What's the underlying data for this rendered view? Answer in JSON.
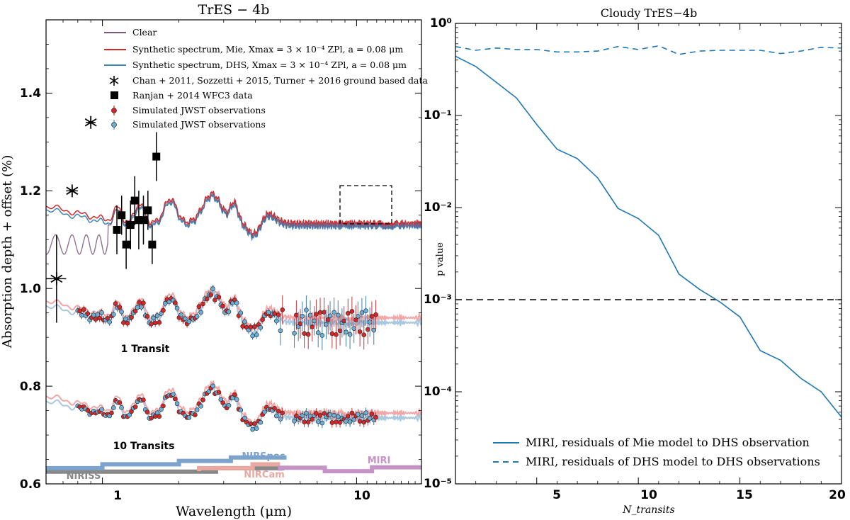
{
  "chart_data": [
    {
      "type": "line",
      "title": "TrES − 4b",
      "xlabel": "Wavelength (μm)",
      "ylabel": "Absorption depth + offset (%)",
      "xscale": "log",
      "xlim": [
        0.6,
        18
      ],
      "ylim": [
        0.6,
        1.55
      ],
      "yticks": [
        "0.6",
        "0.8",
        "1.0",
        "1.2",
        "1.4"
      ],
      "xticks": [
        "1",
        "10"
      ],
      "legend": [
        {
          "label": "Clear",
          "color": "#7d5a7d",
          "kind": "line"
        },
        {
          "label": "Synthetic spectrum, Mie, Xmax = 3 × 10⁻⁴ ZPl, a = 0.08 μm",
          "color": "#d62728",
          "kind": "line"
        },
        {
          "label": "Synthetic spectrum, DHS, Xmax = 3 × 10⁻⁴ ZPl, a = 0.08 μm",
          "color": "#3a86b8",
          "kind": "line"
        },
        {
          "label": "Chan + 2011, Sozzetti + 2015, Turner + 2016 ground based data",
          "color": "#000000",
          "kind": "star"
        },
        {
          "label": "Ranjan + 2014 WFC3 data",
          "color": "#000000",
          "kind": "square"
        },
        {
          "label": "Simulated JWST observations",
          "color": "#d62728",
          "kind": "dot"
        },
        {
          "label": "Simulated JWST observations",
          "color": "#6baed6",
          "kind": "dot"
        }
      ],
      "annotations": [
        "1 Transit",
        "10 Transits"
      ],
      "instruments": [
        {
          "name": "NIRISS",
          "color": "#888888",
          "range": [
            0.6,
            2.8
          ]
        },
        {
          "name": "NIRSpec",
          "color": "#7ba3cc",
          "range": [
            0.6,
            5.3
          ]
        },
        {
          "name": "NIRCam",
          "color": "#e9a9a0",
          "range": [
            2.4,
            5.0
          ]
        },
        {
          "name": "MIRI",
          "color": "#c593c6",
          "range": [
            5.0,
            18
          ]
        }
      ],
      "ground_data": [
        {
          "x": 0.66,
          "y": 1.02,
          "xerr": 0.06,
          "yerr": 0.09
        },
        {
          "x": 0.76,
          "y": 1.2,
          "xerr": 0.04,
          "yerr": 0.01
        },
        {
          "x": 0.9,
          "y": 1.34,
          "xerr": 0.04,
          "yerr": 0.01
        }
      ],
      "wfc3_data": [
        {
          "x": 1.14,
          "y": 1.12,
          "yerr": 0.05
        },
        {
          "x": 1.19,
          "y": 1.15,
          "yerr": 0.04
        },
        {
          "x": 1.24,
          "y": 1.09,
          "yerr": 0.05
        },
        {
          "x": 1.29,
          "y": 1.13,
          "yerr": 0.05
        },
        {
          "x": 1.34,
          "y": 1.18,
          "yerr": 0.05
        },
        {
          "x": 1.39,
          "y": 1.14,
          "yerr": 0.06
        },
        {
          "x": 1.45,
          "y": 1.14,
          "yerr": 0.05
        },
        {
          "x": 1.51,
          "y": 1.16,
          "yerr": 0.04
        },
        {
          "x": 1.57,
          "y": 1.09,
          "yerr": 0.04
        },
        {
          "x": 1.63,
          "y": 1.27,
          "yerr": 0.05
        }
      ]
    },
    {
      "type": "line",
      "title": "Cloudy TrES−4b",
      "xlabel": "N_transits",
      "ylabel": "p value",
      "yscale": "log",
      "xlim": [
        1,
        20
      ],
      "ylim": [
        1e-05,
        1
      ],
      "xticks": [
        "5",
        "10",
        "15",
        "20"
      ],
      "yticks": [
        "10⁰",
        "10⁻¹",
        "10⁻²",
        "10⁻³",
        "10⁻⁴",
        "10⁻⁵"
      ],
      "threshold": 0.001,
      "series": [
        {
          "name": "MIRI, residuals of Mie model to DHS observation",
          "style": "solid",
          "color": "#1f77b4",
          "x": [
            1,
            2,
            3,
            4,
            5,
            6,
            7,
            8,
            9,
            10,
            11,
            12,
            13,
            14,
            15,
            16,
            17,
            18,
            19,
            20
          ],
          "y": [
            0.44,
            0.34,
            0.23,
            0.155,
            0.08,
            0.043,
            0.034,
            0.021,
            0.0098,
            0.0076,
            0.005,
            0.0019,
            0.0013,
            0.00095,
            0.00065,
            0.00028,
            0.00022,
            0.00014,
            0.0001,
            5.3e-05
          ]
        },
        {
          "name": "MIRI, residuals of DHS model to DHS observations",
          "style": "dashed",
          "color": "#1f77b4",
          "x": [
            1,
            2,
            3,
            4,
            5,
            6,
            7,
            8,
            9,
            10,
            11,
            12,
            13,
            14,
            15,
            16,
            17,
            18,
            19,
            20
          ],
          "y": [
            0.56,
            0.51,
            0.54,
            0.52,
            0.52,
            0.49,
            0.49,
            0.5,
            0.56,
            0.52,
            0.57,
            0.46,
            0.5,
            0.51,
            0.51,
            0.51,
            0.47,
            0.5,
            0.55,
            0.54
          ]
        }
      ]
    }
  ]
}
